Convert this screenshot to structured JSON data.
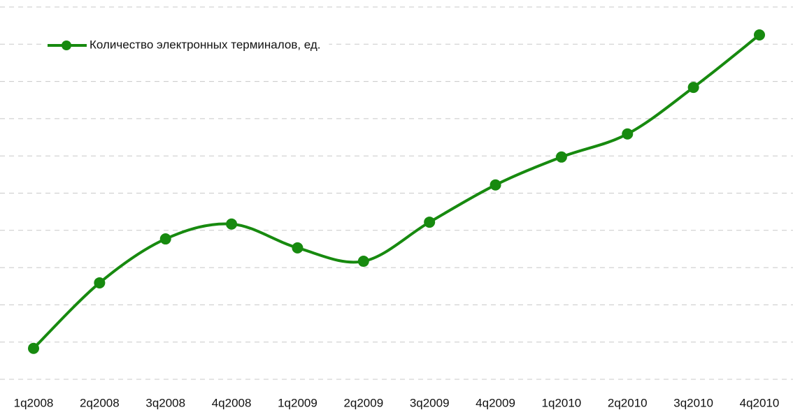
{
  "chart_data": {
    "type": "line",
    "categories": [
      "1q2008",
      "2q2008",
      "3q2008",
      "4q2008",
      "1q2009",
      "2q2009",
      "3q2009",
      "4q2009",
      "1q2010",
      "2q2010",
      "3q2010",
      "4q2010"
    ],
    "series": [
      {
        "name": "Количество электронных терминалов, ед.",
        "color": "#178a0f",
        "values": [
          0.83,
          2.59,
          3.77,
          4.17,
          3.53,
          3.17,
          4.22,
          5.22,
          5.97,
          6.59,
          7.84,
          9.25
        ]
      }
    ],
    "ylim": [
      0,
      10
    ],
    "yticks": [
      0,
      1,
      2,
      3,
      4,
      5,
      6,
      7,
      8,
      9,
      10
    ],
    "grid": true,
    "smooth": true,
    "legend": "top-left"
  }
}
